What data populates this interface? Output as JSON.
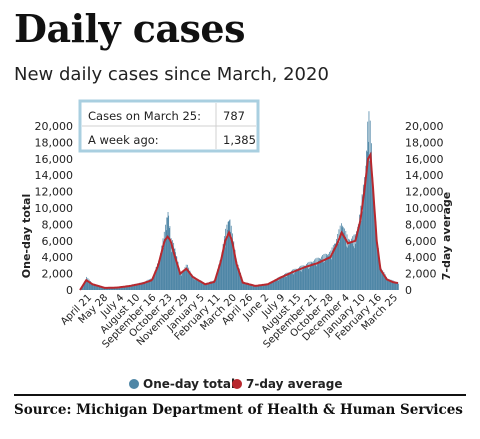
{
  "header": {
    "title": "Daily cases",
    "subtitle": "New daily cases since March, 2020"
  },
  "callout": {
    "rows": [
      {
        "label": "Cases on March 25:",
        "value": "787"
      },
      {
        "label": "A week ago:",
        "value": "1,385"
      }
    ],
    "border_color": "#a9cfe0"
  },
  "source": "Source:  Michigan Department of Health & Human Services",
  "chart_data": {
    "type": "bar",
    "ylabel_left": "One-day total",
    "ylabel_right": "7-day average",
    "ylim": [
      0,
      20000
    ],
    "yticks": [
      0,
      2000,
      4000,
      6000,
      8000,
      10000,
      12000,
      14000,
      16000,
      18000,
      20000
    ],
    "ytick_labels": [
      "0",
      "2,000",
      "4,000",
      "6,000",
      "8,000",
      "10,000",
      "12,000",
      "14,000",
      "16,000",
      "18,000",
      "20,000"
    ],
    "x_tick_labels": [
      "April 21",
      "May 28",
      "July 4",
      "August 10",
      "September 16",
      "October 23",
      "November 29",
      "January 5",
      "February 11",
      "March 20",
      "April 26",
      "June 2",
      "July 9",
      "August 15",
      "September 21",
      "October 28",
      "December 4",
      "January 10",
      "February 16",
      "March 25"
    ],
    "legend_position": "bottom",
    "grid": false,
    "series": [
      {
        "name": "One-day total",
        "kind": "bar",
        "color": "#4f86a6",
        "points": [
          [
            0,
            0
          ],
          [
            5,
            700
          ],
          [
            10,
            1400
          ],
          [
            20,
            700
          ],
          [
            40,
            250
          ],
          [
            60,
            300
          ],
          [
            80,
            550
          ],
          [
            90,
            700
          ],
          [
            100,
            850
          ],
          [
            115,
            1300
          ],
          [
            125,
            3200
          ],
          [
            135,
            6500
          ],
          [
            140,
            9000
          ],
          [
            145,
            5500
          ],
          [
            150,
            5000
          ],
          [
            160,
            1700
          ],
          [
            170,
            2800
          ],
          [
            180,
            1500
          ],
          [
            200,
            700
          ],
          [
            215,
            1100
          ],
          [
            225,
            3800
          ],
          [
            232,
            6500
          ],
          [
            238,
            8200
          ],
          [
            243,
            6000
          ],
          [
            250,
            3200
          ],
          [
            260,
            900
          ],
          [
            280,
            500
          ],
          [
            300,
            700
          ],
          [
            320,
            1500
          ],
          [
            340,
            2200
          ],
          [
            360,
            2800
          ],
          [
            380,
            3500
          ],
          [
            400,
            4200
          ],
          [
            410,
            5800
          ],
          [
            418,
            7500
          ],
          [
            428,
            5500
          ],
          [
            440,
            6000
          ],
          [
            448,
            9000
          ],
          [
            455,
            13000
          ],
          [
            460,
            19500
          ],
          [
            464,
            17500
          ],
          [
            468,
            11000
          ],
          [
            474,
            5500
          ],
          [
            480,
            2500
          ],
          [
            490,
            1300
          ],
          [
            500,
            1000
          ],
          [
            508,
            800
          ]
        ]
      },
      {
        "name": "7-day average",
        "kind": "line",
        "color": "#b8282e",
        "points": [
          [
            0,
            0
          ],
          [
            5,
            600
          ],
          [
            10,
            1200
          ],
          [
            20,
            700
          ],
          [
            40,
            250
          ],
          [
            60,
            300
          ],
          [
            80,
            500
          ],
          [
            90,
            650
          ],
          [
            100,
            800
          ],
          [
            115,
            1200
          ],
          [
            125,
            3000
          ],
          [
            135,
            6000
          ],
          [
            140,
            6500
          ],
          [
            145,
            6000
          ],
          [
            150,
            4500
          ],
          [
            160,
            2000
          ],
          [
            170,
            2600
          ],
          [
            180,
            1600
          ],
          [
            200,
            700
          ],
          [
            215,
            1000
          ],
          [
            225,
            3500
          ],
          [
            232,
            6000
          ],
          [
            238,
            7000
          ],
          [
            243,
            6000
          ],
          [
            250,
            3200
          ],
          [
            260,
            900
          ],
          [
            280,
            500
          ],
          [
            300,
            700
          ],
          [
            320,
            1500
          ],
          [
            340,
            2200
          ],
          [
            360,
            2800
          ],
          [
            380,
            3300
          ],
          [
            400,
            4000
          ],
          [
            410,
            5500
          ],
          [
            418,
            7000
          ],
          [
            428,
            5700
          ],
          [
            440,
            6000
          ],
          [
            448,
            8500
          ],
          [
            455,
            12500
          ],
          [
            460,
            16000
          ],
          [
            464,
            16500
          ],
          [
            468,
            12500
          ],
          [
            474,
            6000
          ],
          [
            480,
            2500
          ],
          [
            490,
            1300
          ],
          [
            500,
            950
          ],
          [
            508,
            850
          ]
        ]
      }
    ]
  }
}
